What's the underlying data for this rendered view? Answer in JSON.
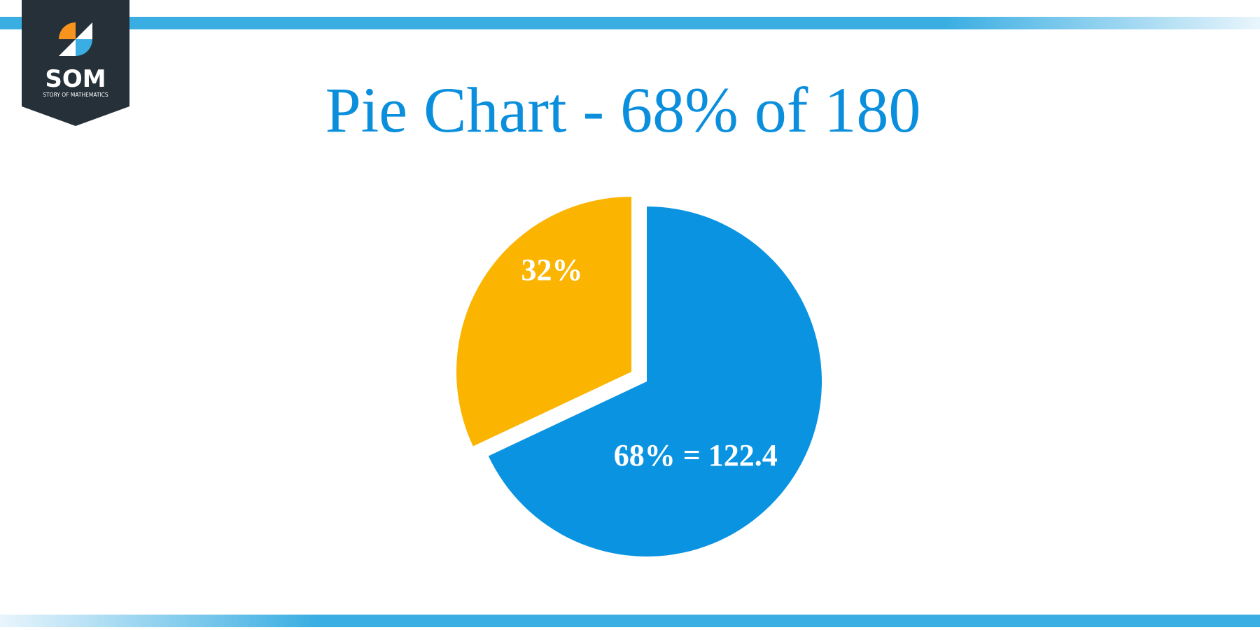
{
  "logo": {
    "text": "SOM",
    "subtitle": "STORY OF MATHEMATICS"
  },
  "chart_data": {
    "type": "pie",
    "title": "Pie Chart - 68% of 180",
    "values": [
      68,
      32
    ],
    "value_labels": [
      "68% = 122.4",
      "32%"
    ],
    "colors": [
      "#0a93e0",
      "#fbb400"
    ],
    "explode": [
      false,
      true
    ]
  }
}
